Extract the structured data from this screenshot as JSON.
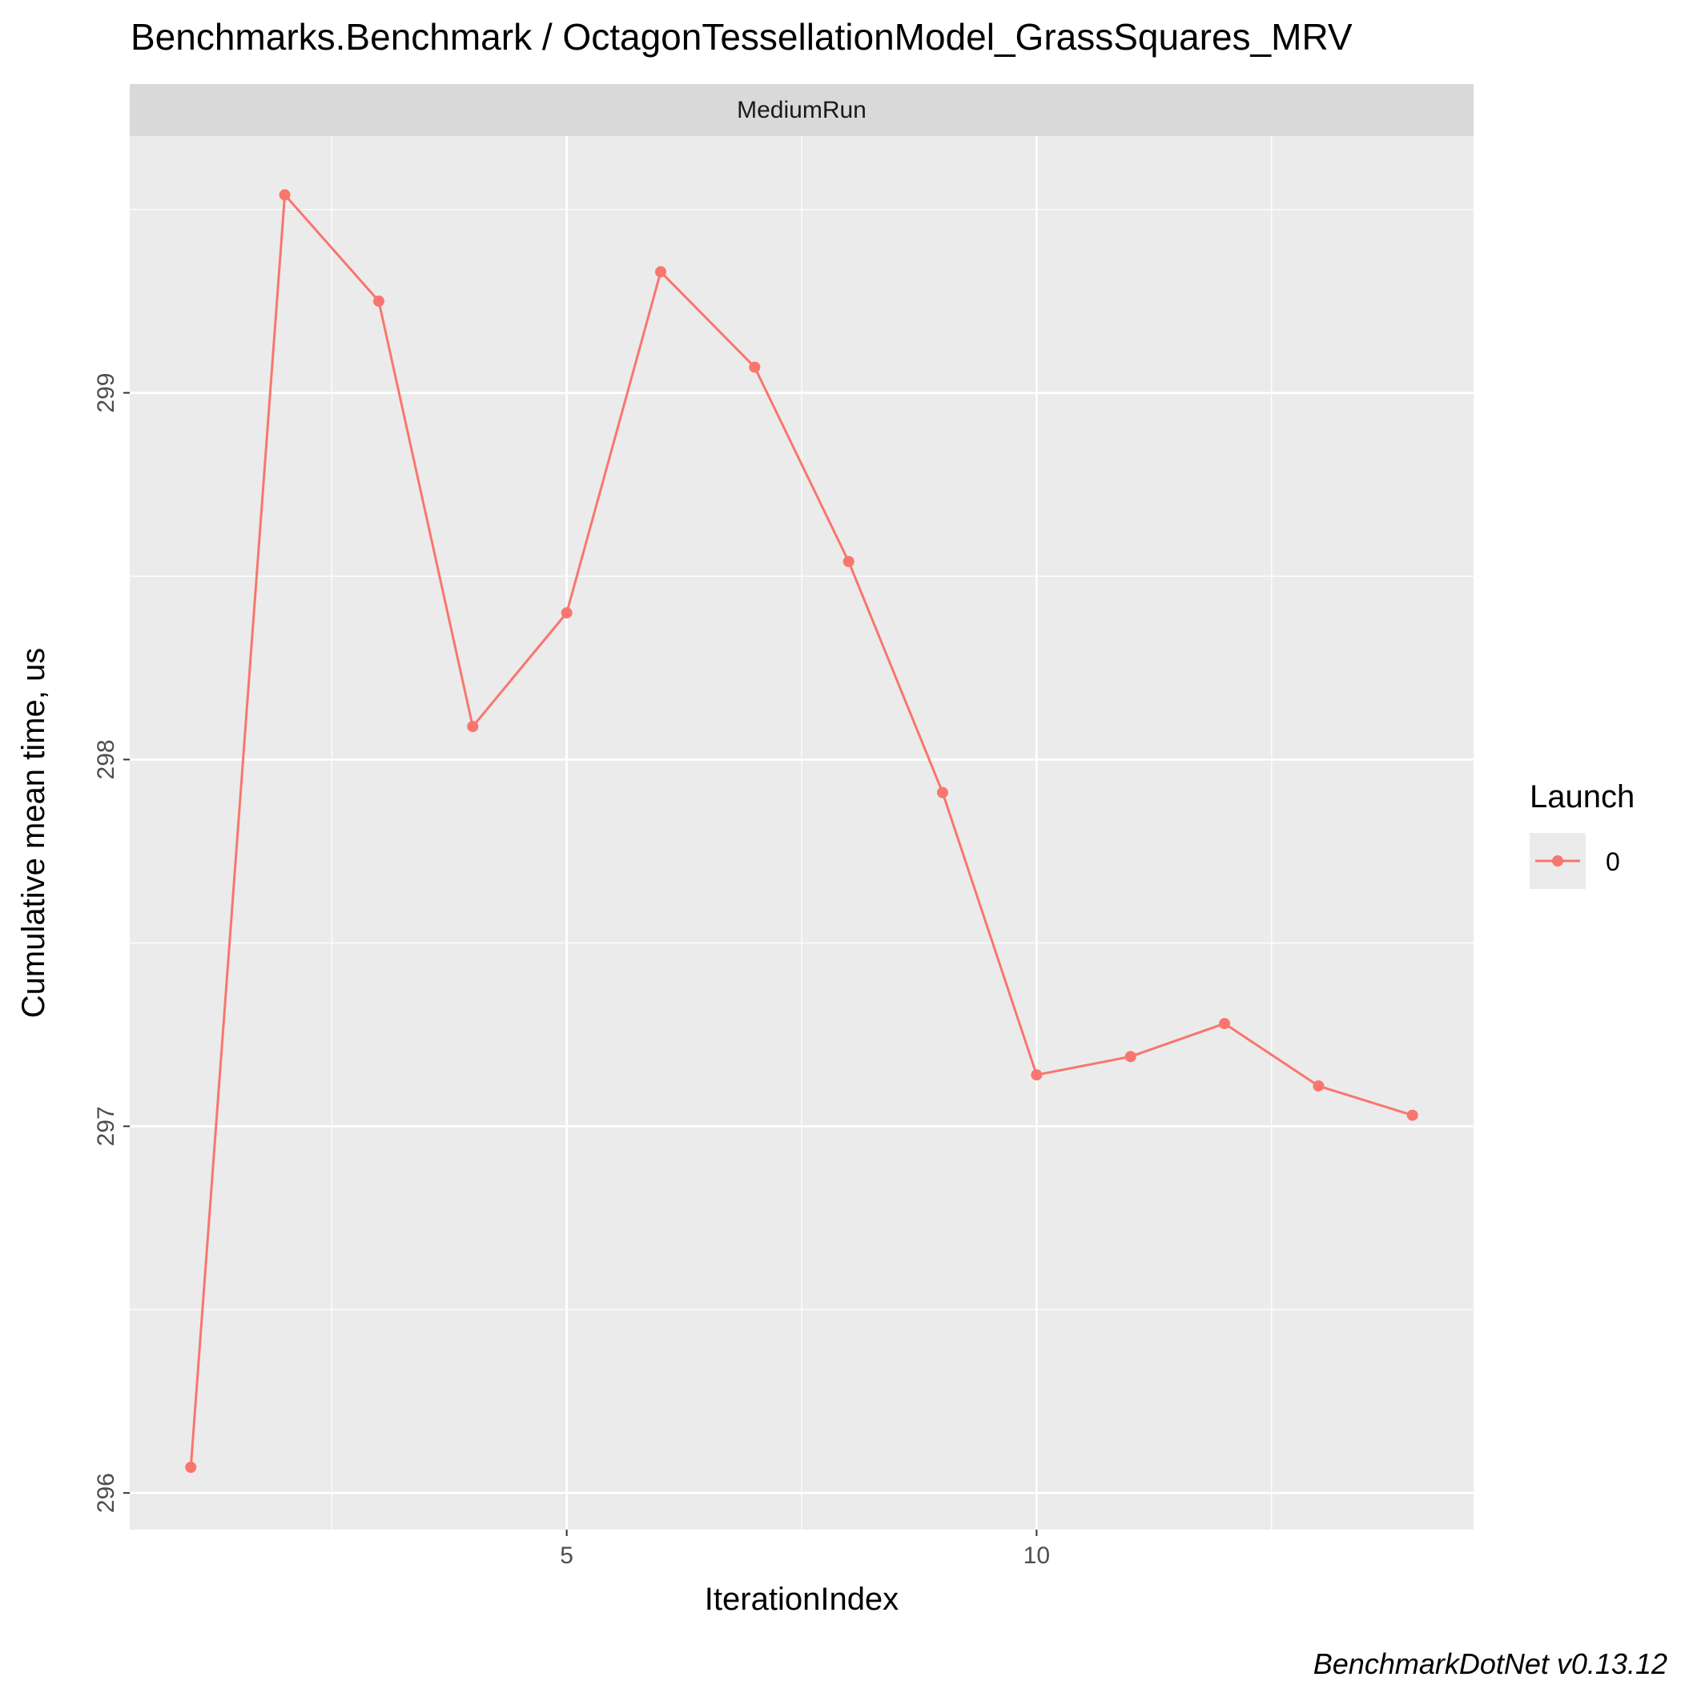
{
  "chart_data": {
    "type": "line",
    "title": "Benchmarks.Benchmark / OctagonTessellationModel_GrassSquares_MRV",
    "facet_label": "MediumRun",
    "xlabel": "IterationIndex",
    "ylabel": "Cumulative mean time, us",
    "x": [
      1,
      2,
      3,
      4,
      5,
      6,
      7,
      8,
      9,
      10,
      11,
      12,
      13,
      14
    ],
    "series": [
      {
        "name": "0",
        "values": [
          296.07,
          299.54,
          299.25,
          298.09,
          298.4,
          299.33,
          299.07,
          298.54,
          297.91,
          297.14,
          297.19,
          297.28,
          297.11,
          297.03
        ]
      }
    ],
    "xlim": [
      0.35,
      14.65
    ],
    "ylim": [
      295.9,
      299.7
    ],
    "xticks": [
      5,
      10
    ],
    "xtick_labels": [
      "5",
      "10"
    ],
    "yticks": [
      296,
      297,
      298,
      299
    ],
    "ytick_labels": [
      "296",
      "297",
      "298",
      "299"
    ],
    "grid": true,
    "legend": {
      "title": "Launch",
      "placement": "right",
      "entries": [
        "0"
      ]
    },
    "series_color": "#F8766D",
    "caption": "BenchmarkDotNet v0.13.12"
  }
}
